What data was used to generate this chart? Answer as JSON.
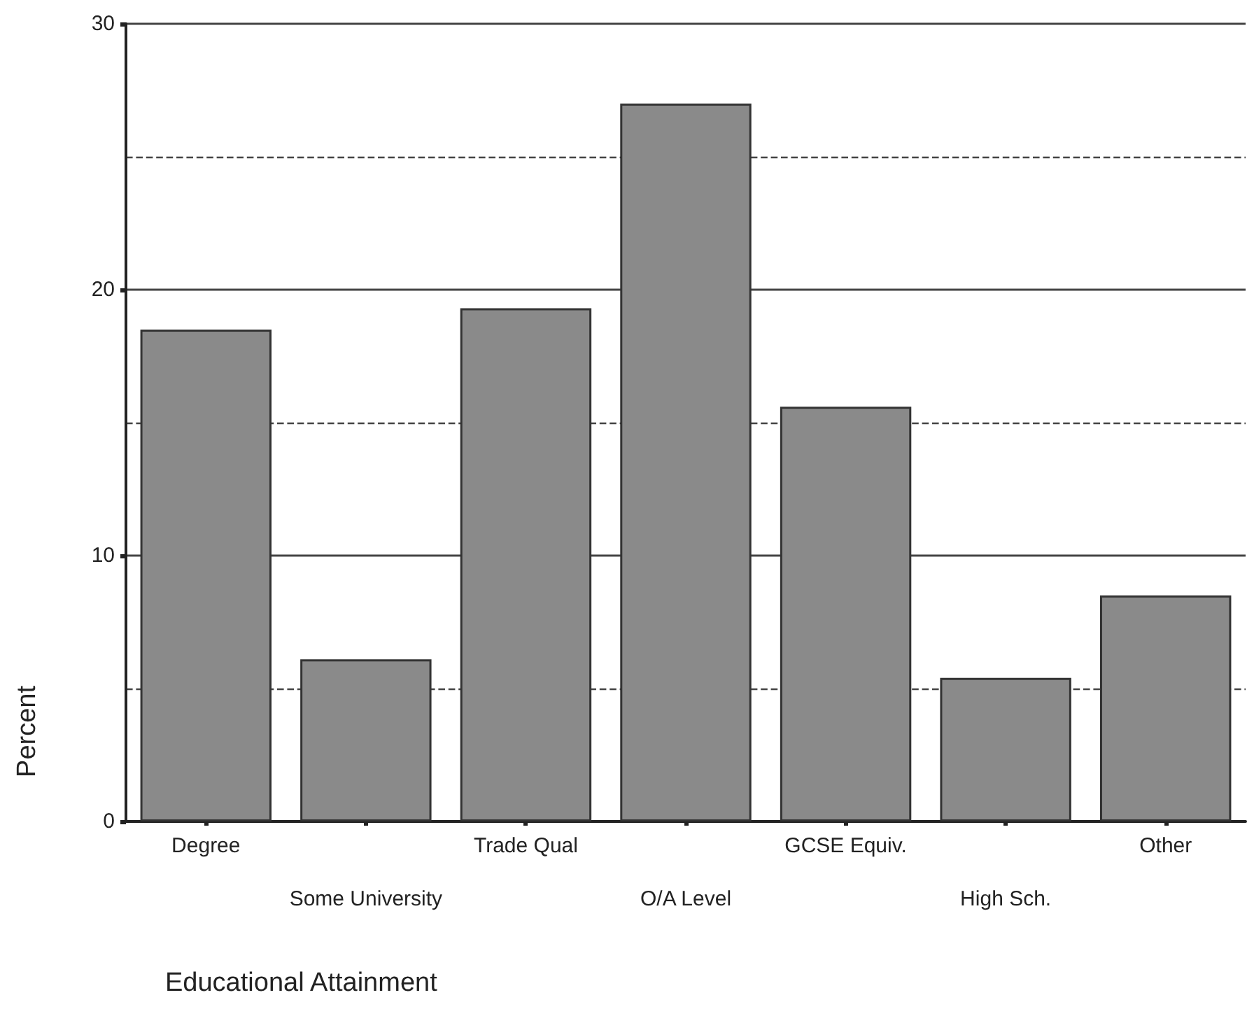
{
  "chart_data": {
    "type": "bar",
    "xlabel": "Educational Attainment",
    "ylabel": "Percent",
    "categories": [
      "Degree",
      "Some University",
      "Trade Qual",
      "O/A Level",
      "GCSE Equiv.",
      "High Sch.",
      "Other"
    ],
    "values": [
      18.5,
      6.1,
      19.3,
      27.0,
      15.6,
      5.4,
      8.5
    ],
    "color": "#8a8a8a",
    "ylim": [
      0,
      30
    ],
    "yticks": [
      0,
      {
        "value": 5,
        "label": null
      },
      10,
      {
        "value": 15,
        "label": null
      },
      20,
      {
        "value": 25,
        "label": null
      },
      30
    ],
    "grid": "y"
  }
}
